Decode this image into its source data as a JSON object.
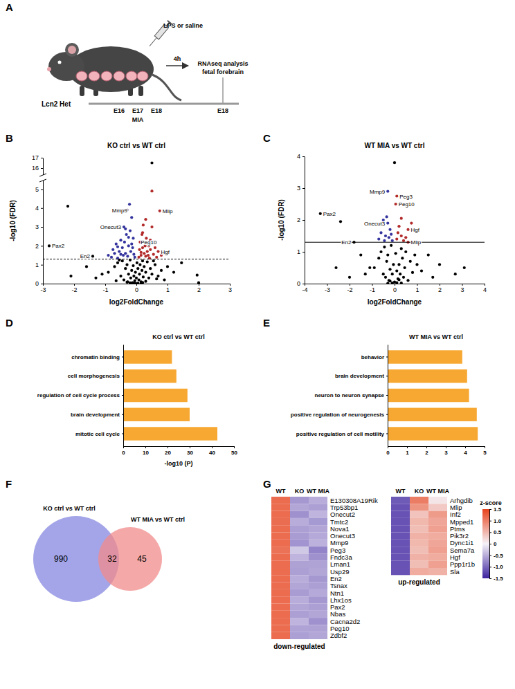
{
  "diagram": {
    "panel": "A",
    "genotype": "Lcn2 Het",
    "injection": "LPS or saline",
    "interval": "4h",
    "readout": [
      "RNAseq analysis",
      "fetal forebrain"
    ],
    "timeline": [
      "E16",
      "E17",
      "E18"
    ],
    "treatment": "MIA",
    "endpoint": "E18"
  },
  "chart_data": [
    {
      "type": "scatter",
      "panel": "B",
      "title": "KO ctrl vs WT ctrl",
      "xlabel": "log2FoldChange",
      "ylabel": "-log10 (FDR)",
      "xlim": [
        -3,
        3
      ],
      "ylim": [
        0,
        17
      ],
      "ybreak": [
        5.2,
        15.8
      ],
      "xticks": [
        -3,
        -2,
        -1,
        0,
        1,
        2,
        3
      ],
      "yticks": [
        0,
        1,
        2,
        3,
        4,
        5,
        16,
        17
      ],
      "series": [
        {
          "color": "#000000",
          "marker": "circle",
          "x": [
            -0.9,
            -0.7,
            -0.6,
            -0.5,
            -0.45,
            -0.4,
            -0.35,
            -0.3,
            -0.28,
            -0.25,
            -0.2,
            -0.18,
            -0.15,
            -0.12,
            -0.1,
            -0.08,
            -0.05,
            -0.03,
            0,
            0.02,
            0.05,
            0.08,
            0.1,
            0.12,
            0.15,
            0.18,
            0.2,
            0.22,
            0.25,
            0.3,
            0.35,
            0.4,
            0.45,
            0.5,
            0.6,
            0.7,
            0.8,
            0.9,
            1.0,
            1.2,
            -1.1,
            -1.3,
            -1.6,
            -2.1,
            1.45,
            1.95,
            2.0,
            -0.55,
            0.55,
            -0.65,
            0.65,
            -0.15,
            0.15,
            -0.3,
            0.3,
            -0.05,
            0.05,
            -0.2,
            0.2,
            0,
            -2.8,
            -2.2,
            -1.4,
            0.5
          ],
          "values": [
            0.6,
            0.9,
            1.1,
            0.4,
            1.2,
            0.2,
            0.8,
            1.0,
            0.1,
            0.5,
            1.25,
            0.3,
            0.7,
            0.05,
            0.95,
            0.4,
            0.15,
            0.6,
            0.3,
            1.1,
            0.8,
            0.2,
            0.5,
            1.0,
            0.1,
            0.7,
            1.2,
            0.35,
            0.9,
            0.6,
            1.15,
            0.3,
            0.8,
            0.5,
            1.0,
            0.4,
            0.7,
            0.2,
            0.9,
            0.6,
            0.5,
            0.3,
            0.9,
            0.4,
            1.1,
            0.45,
            0.05,
            1.25,
            1.2,
            0.15,
            0.25,
            0.02,
            0.03,
            0.08,
            0.12,
            0.01,
            0.02,
            0.04,
            0.06,
            0,
            2.0,
            4.1,
            1.45,
            16.5
          ]
        },
        {
          "color": "#34349e",
          "marker": "circle",
          "x": [
            -0.9,
            -0.8,
            -0.75,
            -0.7,
            -0.65,
            -0.6,
            -0.55,
            -0.5,
            -0.45,
            -0.42,
            -0.4,
            -0.38,
            -0.35,
            -0.32,
            -0.3,
            -0.28,
            -0.25,
            -0.22,
            -0.2,
            -0.18,
            -0.15,
            -0.12,
            -0.1,
            -0.08,
            -0.05,
            -0.35,
            -0.6,
            -0.5,
            -0.25,
            -0.15
          ],
          "values": [
            1.5,
            1.4,
            1.8,
            1.6,
            2.1,
            1.35,
            1.7,
            2.3,
            1.9,
            1.5,
            3.0,
            2.2,
            1.6,
            2.6,
            3.9,
            1.45,
            2.0,
            4.2,
            2.8,
            1.7,
            3.5,
            1.9,
            2.4,
            1.55,
            1.4,
            2.9,
            1.95,
            1.55,
            2.45,
            2.1
          ]
        },
        {
          "color": "#b22a2a",
          "marker": "circle",
          "x": [
            0.08,
            0.1,
            0.12,
            0.15,
            0.18,
            0.2,
            0.22,
            0.25,
            0.28,
            0.3,
            0.32,
            0.35,
            0.38,
            0.4,
            0.42,
            0.45,
            0.5,
            0.55,
            0.6,
            0.65,
            0.7,
            0.75,
            0.8,
            0.9,
            0.3,
            0.2,
            0.15,
            0.45,
            0.55,
            0.5
          ],
          "values": [
            1.4,
            1.8,
            2.2,
            1.5,
            2.6,
            1.9,
            3.1,
            1.6,
            2.0,
            1.45,
            2.4,
            1.7,
            1.5,
            2.0,
            1.35,
            1.8,
            3.0,
            1.55,
            1.9,
            1.4,
            1.7,
            3.85,
            1.5,
            1.6,
            3.4,
            2.7,
            1.65,
            2.3,
            2.2,
            4.9
          ]
        },
        {
          "type": "line",
          "color": "#000000",
          "line_style": "dashed",
          "x": [
            -3,
            3
          ],
          "values": [
            1.3,
            1.3
          ]
        }
      ],
      "annotations": [
        {
          "text": "Pax2",
          "x": -2.8,
          "y": 2.0
        },
        {
          "text": "Mmp9",
          "x": -0.2,
          "y": 3.9
        },
        {
          "text": "Mlip",
          "x": 0.75,
          "y": 3.85
        },
        {
          "text": "Onecut3",
          "x": -0.4,
          "y": 3.0
        },
        {
          "text": "Peg10",
          "x": 0.05,
          "y": 2.2
        },
        {
          "text": "Hgf",
          "x": 0.7,
          "y": 1.7
        },
        {
          "text": "En2",
          "x": -1.4,
          "y": 1.45
        }
      ]
    },
    {
      "type": "scatter",
      "panel": "C",
      "title": "WT MIA vs WT ctrl",
      "xlabel": "log2FoldChange",
      "ylabel": "-log10 (FDR)",
      "xlim": [
        -4,
        4
      ],
      "ylim": [
        0,
        4
      ],
      "xticks": [
        -4,
        -3,
        -2,
        -1,
        0,
        1,
        2,
        3,
        4
      ],
      "yticks": [
        0,
        1,
        2,
        3,
        4
      ],
      "series": [
        {
          "color": "#000000",
          "marker": "circle",
          "x": [
            -0.9,
            -0.7,
            -0.6,
            -0.5,
            -0.45,
            -0.4,
            -0.35,
            -0.3,
            -0.25,
            -0.2,
            -0.15,
            -0.1,
            -0.05,
            0,
            0.05,
            0.1,
            0.15,
            0.2,
            0.25,
            0.3,
            0.35,
            0.4,
            0.45,
            0.5,
            0.6,
            0.7,
            0.8,
            0.9,
            1.0,
            1.2,
            -1.1,
            -1.3,
            -1.5,
            -2.0,
            -2.6,
            1.5,
            1.7,
            2.0,
            2.7,
            3.1,
            -3.3,
            -2.4,
            -1.8,
            0,
            -0.1,
            0.1,
            -0.2,
            0.2,
            -0.3,
            0.3
          ],
          "values": [
            0.5,
            0.8,
            1.0,
            0.3,
            1.15,
            0.2,
            0.7,
            0.9,
            0.1,
            0.45,
            1.2,
            0.3,
            0.6,
            0.05,
            0.95,
            0.4,
            0.15,
            0.6,
            0.3,
            1.1,
            0.8,
            0.2,
            0.5,
            1.0,
            0.1,
            0.7,
            0.35,
            0.9,
            0.6,
            0.4,
            0.5,
            0.3,
            0.9,
            0.2,
            0.5,
            0.9,
            0.2,
            0.6,
            0.3,
            0.5,
            2.2,
            1.95,
            1.3,
            3.8,
            0.02,
            0.03,
            0.08,
            0.12,
            0.01,
            0.02
          ]
        },
        {
          "color": "#34349e",
          "marker": "circle",
          "x": [
            -0.7,
            -0.6,
            -0.5,
            -0.45,
            -0.4,
            -0.35,
            -0.3,
            -0.3,
            -0.25,
            -0.2,
            -0.15,
            -0.1
          ],
          "values": [
            1.4,
            1.6,
            2.0,
            1.35,
            1.5,
            2.1,
            1.9,
            2.9,
            1.45,
            1.7,
            1.55,
            1.35
          ]
        },
        {
          "color": "#b22a2a",
          "marker": "circle",
          "x": [
            0.05,
            0.1,
            0.1,
            0.15,
            0.2,
            0.3,
            0.4,
            0.5,
            0.6,
            0.6,
            0.75,
            0.3
          ],
          "values": [
            2.5,
            2.75,
            1.4,
            1.6,
            1.8,
            1.5,
            1.35,
            1.45,
            1.7,
            1.3,
            1.9,
            2.05
          ]
        },
        {
          "type": "line",
          "color": "#000000",
          "line_style": "solid",
          "x": [
            -4,
            4
          ],
          "values": [
            1.3,
            1.3
          ]
        }
      ],
      "annotations": [
        {
          "text": "Mmp9",
          "x": -0.3,
          "y": 2.9
        },
        {
          "text": "Peg3",
          "x": 0.1,
          "y": 2.75
        },
        {
          "text": "Peg10",
          "x": 0.05,
          "y": 2.5
        },
        {
          "text": "Pax2",
          "x": -3.3,
          "y": 2.2
        },
        {
          "text": "Onecut3",
          "x": -0.3,
          "y": 1.9
        },
        {
          "text": "Hgf",
          "x": 0.6,
          "y": 1.7
        },
        {
          "text": "En2",
          "x": -1.8,
          "y": 1.3
        },
        {
          "text": "Mlip",
          "x": 0.6,
          "y": 1.3
        }
      ]
    },
    {
      "type": "bar",
      "orientation": "horizontal",
      "panel": "D",
      "title": "KO ctrl vs WT ctrl",
      "xlabel": "-log10 (P)",
      "categories": [
        "chromatin binding",
        "cell morphogenesis",
        "regulation of cell cycle process",
        "brain development",
        "mitotic cell cycle"
      ],
      "values": [
        22,
        24,
        29,
        30,
        42.5
      ],
      "color": "#f7a833",
      "xlim": [
        0,
        50
      ],
      "xticks": [
        0,
        10,
        20,
        30,
        40,
        50
      ]
    },
    {
      "type": "bar",
      "orientation": "horizontal",
      "panel": "E",
      "title": "WT MIA vs WT ctrl",
      "categories": [
        "behavior",
        "brain development",
        "neuron to neuron synapse",
        "positive regulation of neurogenesis",
        "positive regulation of cell motility"
      ],
      "values": [
        3.85,
        4.1,
        4.2,
        4.6,
        4.65
      ],
      "color": "#f7a833",
      "xlim": [
        0,
        5
      ],
      "xticks": [
        0,
        1,
        2,
        3,
        4,
        5
      ]
    },
    {
      "type": "venn",
      "panel": "F",
      "sets": [
        {
          "label": "KO ctrl vs WT ctrl",
          "count": 990,
          "color": "#8587e0"
        },
        {
          "label": "WT MIA vs WT ctrl",
          "count": 45,
          "color": "#f28b8b"
        }
      ],
      "overlap": 32
    },
    {
      "type": "heatmap",
      "panel": "G",
      "xlabel": "down-regulated",
      "x": [
        "WT",
        "KO",
        "WT MIA"
      ],
      "y": [
        "E130308A19Rik",
        "Trp53bp1",
        "Onecut2",
        "Tmtc2",
        "Nova1",
        "Onecut3",
        "Mmp9",
        "Peg3",
        "Fndc3a",
        "Lman1",
        "Usp29",
        "En2",
        "Tsnax",
        "Ntn1",
        "Lhx1os",
        "Pax2",
        "Nbas",
        "Cacna2d2",
        "Peg10",
        "Zdbf2"
      ],
      "z": [
        [
          1.15,
          -0.65,
          -0.5
        ],
        [
          1.15,
          -0.55,
          -0.6
        ],
        [
          1.15,
          -0.7,
          -0.45
        ],
        [
          1.14,
          -0.5,
          -0.64
        ],
        [
          1.15,
          -0.6,
          -0.55
        ],
        [
          1.15,
          -0.62,
          -0.53
        ],
        [
          1.15,
          -0.68,
          -0.47
        ],
        [
          1.1,
          -0.3,
          -0.8
        ],
        [
          1.15,
          -0.45,
          -0.7
        ],
        [
          1.15,
          -0.58,
          -0.57
        ],
        [
          1.15,
          -0.6,
          -0.55
        ],
        [
          1.15,
          -0.5,
          -0.65
        ],
        [
          1.15,
          -0.55,
          -0.6
        ],
        [
          1.15,
          -0.62,
          -0.53
        ],
        [
          1.15,
          -0.5,
          -0.65
        ],
        [
          1.15,
          -0.55,
          -0.6
        ],
        [
          1.15,
          -0.6,
          -0.55
        ],
        [
          1.15,
          -0.45,
          -0.7
        ],
        [
          1.15,
          -0.57,
          -0.58
        ],
        [
          1.15,
          -0.6,
          -0.55
        ]
      ]
    },
    {
      "type": "heatmap",
      "xlabel": "up-regulated",
      "x": [
        "WT",
        "KO",
        "WT MIA"
      ],
      "y": [
        "Arhgdib",
        "Mlip",
        "Inf2",
        "Mpped1",
        "Ptms",
        "Pik3r2",
        "Dync1i1",
        "Sema7a",
        "Hgf",
        "Ppp1r1b",
        "Sla"
      ],
      "z": [
        [
          -1.1,
          1.0,
          0.1
        ],
        [
          -1.15,
          0.8,
          0.35
        ],
        [
          -1.15,
          0.4,
          0.75
        ],
        [
          -1.15,
          0.5,
          0.65
        ],
        [
          -1.15,
          0.45,
          0.7
        ],
        [
          -1.15,
          0.55,
          0.6
        ],
        [
          -1.15,
          0.5,
          0.65
        ],
        [
          -1.15,
          0.45,
          0.7
        ],
        [
          -1.15,
          0.55,
          0.6
        ],
        [
          -1.15,
          0.45,
          0.7
        ],
        [
          -1.15,
          0.6,
          0.55
        ]
      ],
      "colorbar": {
        "title": "z-score",
        "range": [
          -1.5,
          1.5
        ],
        "ticks": [
          1.5,
          {
            "value": 1,
            "label": "1.0"
          },
          0.5,
          0,
          -0.5,
          {
            "value": -1,
            "label": "-1.0"
          },
          -1.5
        ],
        "colors": [
          "#3d23a0",
          "#f5f2f7",
          "#e8431c"
        ]
      }
    }
  ]
}
